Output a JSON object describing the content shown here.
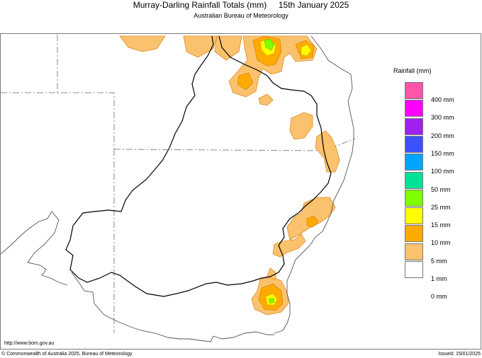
{
  "header": {
    "title": "Murray-Darling Rainfall Totals (mm)     15th January 2025",
    "subtitle": "Australian Bureau of Meteorology"
  },
  "legend": {
    "title": "Rainfall (mm)",
    "items": [
      {
        "label": "400 mm",
        "color": "#ff55a8"
      },
      {
        "label": "300 mm",
        "color": "#ff00ff"
      },
      {
        "label": "200 mm",
        "color": "#a020f0"
      },
      {
        "label": "150 mm",
        "color": "#3c50ff"
      },
      {
        "label": "100 mm",
        "color": "#00a5ff"
      },
      {
        "label": "50 mm",
        "color": "#00e396"
      },
      {
        "label": "25 mm",
        "color": "#80ff00"
      },
      {
        "label": "15 mm",
        "color": "#ffff00"
      },
      {
        "label": "10 mm",
        "color": "#ffaa00"
      },
      {
        "label": "5 mm",
        "color": "#fbc26e"
      },
      {
        "label": "1 mm",
        "color": "#ffffff"
      },
      {
        "label": "0 mm",
        "color": ""
      }
    ]
  },
  "footer": {
    "url": "http://www.bom.gov.au",
    "copyright": "© Commonwealth of Australia 2025, Bureau of Meteorology",
    "issued": "Issued: 15/01/2025"
  }
}
